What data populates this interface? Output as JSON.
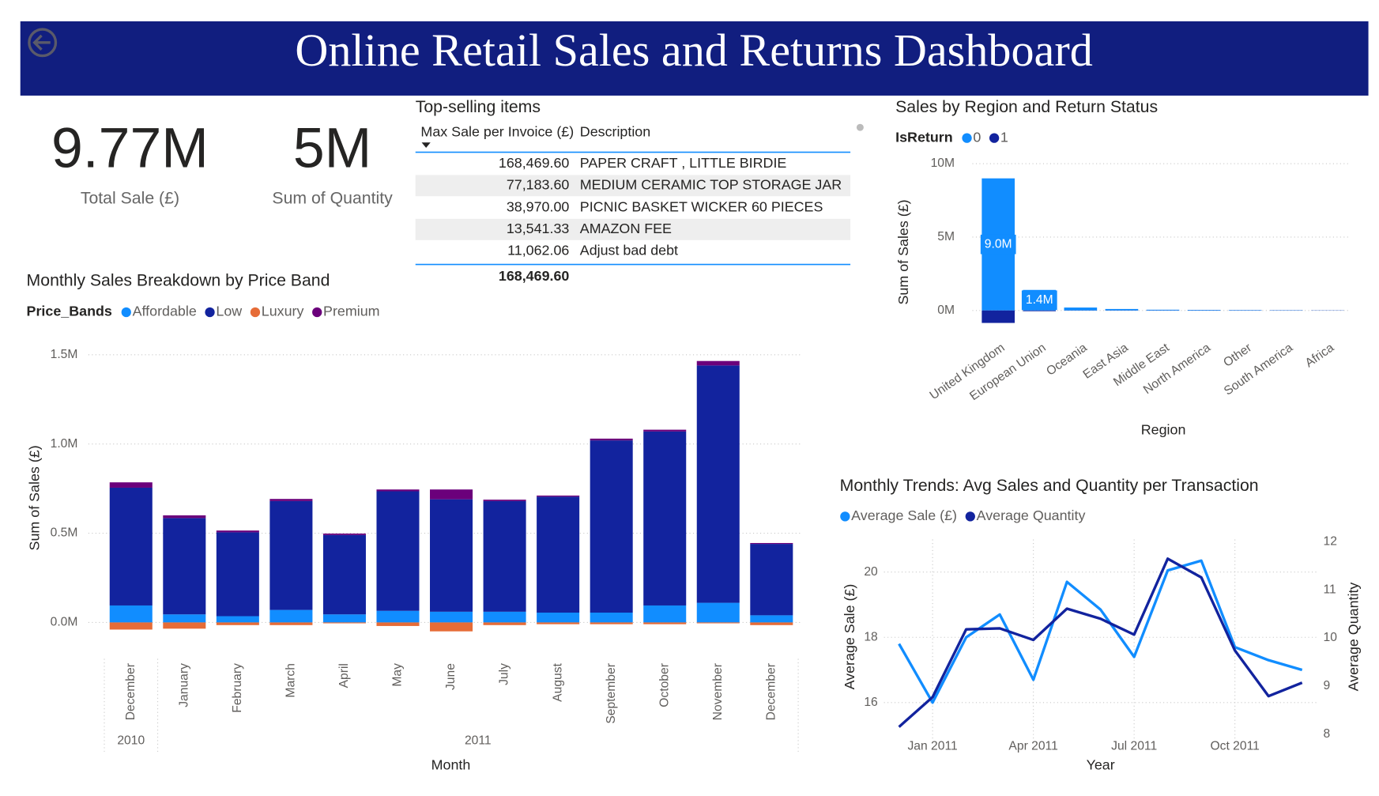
{
  "header": {
    "title": "Online Retail Sales and Returns Dashboard"
  },
  "kpis": [
    {
      "value": "9.77M",
      "label": "Total Sale (£)"
    },
    {
      "value": "5M",
      "label": "Sum of Quantity"
    }
  ],
  "table": {
    "title": "Top-selling items",
    "columns": [
      "Max Sale per Invoice (£)",
      "Description"
    ],
    "rows": [
      [
        "168,469.60",
        "PAPER CRAFT , LITTLE BIRDIE"
      ],
      [
        "77,183.60",
        "MEDIUM CERAMIC TOP STORAGE JAR"
      ],
      [
        "38,970.00",
        "PICNIC BASKET WICKER 60 PIECES"
      ],
      [
        "13,541.33",
        "AMAZON FEE"
      ],
      [
        "11,062.06",
        "Adjust bad debt"
      ]
    ],
    "total": "168,469.60"
  },
  "chart_data": [
    {
      "type": "bar",
      "stacked": true,
      "title": "Monthly Sales Breakdown by Price Band",
      "legend_title": "Price_Bands",
      "x_label": "Month",
      "y_label": "Sum of Sales (£)",
      "categories": [
        "December",
        "January",
        "February",
        "March",
        "April",
        "May",
        "June",
        "July",
        "August",
        "September",
        "October",
        "November",
        "December"
      ],
      "category_groups": [
        {
          "label": "2010",
          "count": 1
        },
        {
          "label": "2011",
          "count": 12
        }
      ],
      "series": [
        {
          "name": "Affordable",
          "color": "#118DFF",
          "values": [
            0.095,
            0.045,
            0.035,
            0.07,
            0.045,
            0.065,
            0.06,
            0.06,
            0.055,
            0.055,
            0.095,
            0.11,
            0.04
          ]
        },
        {
          "name": "Low",
          "color": "#12239E",
          "values": [
            0.66,
            0.54,
            0.47,
            0.61,
            0.445,
            0.67,
            0.63,
            0.62,
            0.65,
            0.965,
            0.975,
            1.33,
            0.4
          ]
        },
        {
          "name": "Luxury",
          "color": "#E66C37",
          "values": [
            -0.04,
            -0.035,
            -0.015,
            -0.015,
            -0.005,
            -0.02,
            -0.05,
            -0.015,
            -0.01,
            -0.01,
            -0.01,
            -0.005,
            -0.015
          ]
        },
        {
          "name": "Premium",
          "color": "#6B007B",
          "values": [
            0.03,
            0.015,
            0.01,
            0.012,
            0.008,
            0.01,
            0.055,
            0.008,
            0.006,
            0.01,
            0.01,
            0.025,
            0.005
          ]
        }
      ],
      "ylim": [
        -0.1,
        1.55
      ],
      "yticks": [
        {
          "value": 0,
          "label": "0.0M"
        },
        {
          "value": 0.5,
          "label": "0.5M"
        },
        {
          "value": 1,
          "label": "1.0M"
        },
        {
          "value": 1.5,
          "label": "1.5M"
        }
      ],
      "grid": true
    },
    {
      "type": "bar",
      "stacked": true,
      "title": "Sales by Region and Return Status",
      "legend_title": "IsReturn",
      "x_label": "Region",
      "y_label": "Sum of Sales (£)",
      "categories": [
        "United Kingdom",
        "European Union",
        "Oceania",
        "East Asia",
        "Middle East",
        "North America",
        "Other",
        "South America",
        "Africa"
      ],
      "series": [
        {
          "name": "0",
          "color": "#118DFF",
          "values": [
            9.0,
            1.4,
            0.2,
            0.1,
            0.05,
            0.04,
            0.03,
            0.02,
            0.01
          ],
          "value_labels": [
            "9.0M",
            "1.4M",
            null,
            null,
            null,
            null,
            null,
            null,
            null
          ]
        },
        {
          "name": "1",
          "color": "#12239E",
          "values": [
            -0.85,
            -0.05,
            -0.01,
            -0.01,
            -0.01,
            -0.01,
            -0.01,
            -0.01,
            -0.01
          ]
        }
      ],
      "ylim": [
        -1,
        11
      ],
      "yticks": [
        {
          "value": 0,
          "label": "0M"
        },
        {
          "value": 5,
          "label": "5M"
        },
        {
          "value": 10,
          "label": "10M"
        }
      ],
      "grid": true
    },
    {
      "type": "line",
      "title": "Monthly Trends: Avg Sales and Quantity per Transaction",
      "x_label": "Year",
      "y_label": "Average Sale (£)",
      "y2_label": "Average Quantity",
      "x": [
        "2010-12",
        "2011-01",
        "2011-02",
        "2011-03",
        "2011-04",
        "2011-05",
        "2011-06",
        "2011-07",
        "2011-08",
        "2011-09",
        "2011-10",
        "2011-11",
        "2011-12"
      ],
      "xlim": [
        "2010-12",
        "2011-12"
      ],
      "xticks": [
        {
          "value": "2011-01",
          "label": "Jan 2011"
        },
        {
          "value": "2011-04",
          "label": "Apr 2011"
        },
        {
          "value": "2011-07",
          "label": "Jul 2011"
        },
        {
          "value": "2011-10",
          "label": "Oct 2011"
        }
      ],
      "series": [
        {
          "name": "Average Sale (£)",
          "color": "#118DFF",
          "values": [
            17.8,
            16.0,
            18.0,
            18.7,
            16.7,
            19.7,
            18.85,
            17.4,
            20.05,
            20.35,
            17.7,
            17.3,
            17.0
          ]
        },
        {
          "name": "Average Quantity",
          "color": "#12239E",
          "axis": "y2",
          "values": [
            8.15,
            8.77,
            10.18,
            10.2,
            9.96,
            10.61,
            10.4,
            10.07,
            11.65,
            11.26,
            9.74,
            8.79,
            9.07
          ]
        }
      ],
      "ylim": [
        14.9,
        21.0
      ],
      "yticks": [
        16,
        18,
        20
      ],
      "y2lim": [
        7.91,
        12.05
      ],
      "y2ticks": [
        8,
        9,
        10,
        11,
        12
      ],
      "grid": true
    }
  ]
}
